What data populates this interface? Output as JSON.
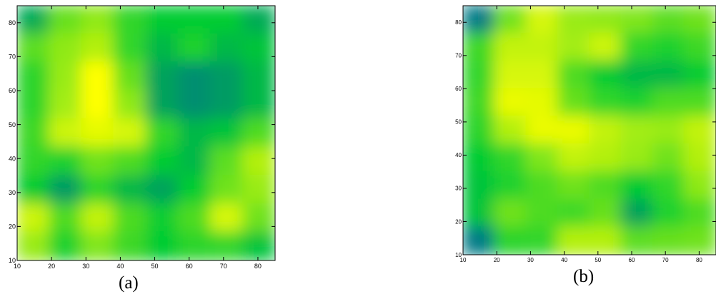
{
  "chart_data": [
    {
      "type": "heatmap",
      "caption": "(a)",
      "xlim": [
        10,
        85
      ],
      "ylim": [
        10,
        85
      ],
      "xticks": [
        "10",
        "20",
        "30",
        "40",
        "50",
        "60",
        "70",
        "80"
      ],
      "yticks": [
        "10",
        "20",
        "30",
        "40",
        "50",
        "60",
        "70",
        "80"
      ],
      "colorscale": [
        "#0000ff",
        "#00cc33",
        "#ffff00"
      ],
      "grid": false,
      "values": [
        [
          0.42,
          0.7,
          0.78,
          0.6,
          0.5,
          0.5,
          0.5,
          0.42
        ],
        [
          0.68,
          0.78,
          0.85,
          0.6,
          0.45,
          0.55,
          0.45,
          0.48
        ],
        [
          0.58,
          0.8,
          1.0,
          0.7,
          0.4,
          0.35,
          0.38,
          0.45
        ],
        [
          0.58,
          0.82,
          1.0,
          0.78,
          0.4,
          0.35,
          0.38,
          0.45
        ],
        [
          0.62,
          0.9,
          0.95,
          0.92,
          0.6,
          0.45,
          0.48,
          0.65
        ],
        [
          0.6,
          0.55,
          0.72,
          0.65,
          0.5,
          0.45,
          0.68,
          0.85
        ],
        [
          0.5,
          0.38,
          0.58,
          0.45,
          0.4,
          0.5,
          0.72,
          0.8
        ],
        [
          0.9,
          0.65,
          0.88,
          0.65,
          0.52,
          0.65,
          0.92,
          0.72
        ],
        [
          0.8,
          0.55,
          0.75,
          0.62,
          0.5,
          0.58,
          0.6,
          0.48
        ]
      ]
    },
    {
      "type": "heatmap",
      "caption": "(b)",
      "xlim": [
        10,
        85
      ],
      "ylim": [
        10,
        85
      ],
      "xticks": [
        "10",
        "20",
        "30",
        "40",
        "50",
        "60",
        "70",
        "80"
      ],
      "yticks": [
        "10",
        "20",
        "30",
        "40",
        "50",
        "60",
        "70",
        "80"
      ],
      "colorscale": [
        "#0000ff",
        "#00cc33",
        "#ffff00"
      ],
      "grid": false,
      "values": [
        [
          0.3,
          0.72,
          0.92,
          0.8,
          0.78,
          0.75,
          0.68,
          0.72
        ],
        [
          0.62,
          0.88,
          0.88,
          0.82,
          0.9,
          0.6,
          0.55,
          0.62
        ],
        [
          0.6,
          0.92,
          0.92,
          0.65,
          0.5,
          0.45,
          0.45,
          0.5
        ],
        [
          0.62,
          0.96,
          0.95,
          0.7,
          0.6,
          0.55,
          0.65,
          0.65
        ],
        [
          0.58,
          0.85,
          0.96,
          0.96,
          0.88,
          0.82,
          0.8,
          0.88
        ],
        [
          0.5,
          0.6,
          0.75,
          0.88,
          0.85,
          0.8,
          0.72,
          0.85
        ],
        [
          0.48,
          0.55,
          0.65,
          0.72,
          0.65,
          0.5,
          0.6,
          0.78
        ],
        [
          0.48,
          0.72,
          0.65,
          0.62,
          0.7,
          0.4,
          0.55,
          0.65
        ],
        [
          0.3,
          0.58,
          0.6,
          0.85,
          0.85,
          0.68,
          0.7,
          0.72
        ]
      ]
    }
  ]
}
